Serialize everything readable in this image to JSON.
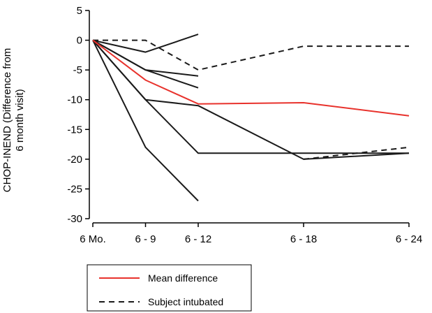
{
  "chart_data": {
    "type": "line",
    "ylabel_lines": [
      "CHOP-INEND (Difference from",
      "6 month visit)"
    ],
    "xlabel": "",
    "categories": [
      "6 Mo.",
      "6 - 9",
      "6 - 12",
      "6 - 18",
      "6 - 24"
    ],
    "x_positions": [
      6,
      9,
      12,
      18,
      24
    ],
    "ylim": [
      -30,
      5
    ],
    "yticks": [
      5,
      0,
      -5,
      -10,
      -15,
      -20,
      -25,
      -30
    ],
    "grid": false,
    "legend_position": "bottom-left",
    "colors": {
      "mean": "#e8322c",
      "subject": "#1a1a1a"
    },
    "series": [
      {
        "style": "solid",
        "x": [
          6,
          9,
          12
        ],
        "y": [
          0,
          -2,
          1
        ]
      },
      {
        "style": "solid",
        "x": [
          6,
          9,
          12
        ],
        "y": [
          0,
          -5,
          -6
        ]
      },
      {
        "style": "solid",
        "x": [
          6,
          9,
          12
        ],
        "y": [
          0,
          -5,
          -8
        ]
      },
      {
        "style": "solid",
        "x": [
          6,
          9,
          12,
          18,
          24
        ],
        "y": [
          0,
          -10,
          -11,
          -20,
          -19
        ]
      },
      {
        "style": "solid",
        "x": [
          6,
          9,
          12,
          18,
          24
        ],
        "y": [
          0,
          -10,
          -19,
          -19,
          -19
        ]
      },
      {
        "style": "solid",
        "x": [
          6,
          9,
          12
        ],
        "y": [
          0,
          -18,
          -27
        ]
      },
      {
        "style": "dashed",
        "x": [
          6,
          9,
          12,
          18,
          24
        ],
        "y": [
          0,
          0,
          -5,
          -1,
          -1
        ]
      },
      {
        "style": "dashed",
        "x": [
          18,
          24
        ],
        "y": [
          -20,
          -18
        ]
      },
      {
        "style": "mean",
        "name": "Mean difference",
        "x": [
          6,
          9,
          12,
          18,
          24
        ],
        "y": [
          0,
          -6.7,
          -10.7,
          -10.5,
          -12.7
        ]
      }
    ],
    "legend": [
      {
        "label": "Mean difference",
        "style": "mean"
      },
      {
        "label": "Subject intubated",
        "style": "dashed"
      }
    ]
  }
}
